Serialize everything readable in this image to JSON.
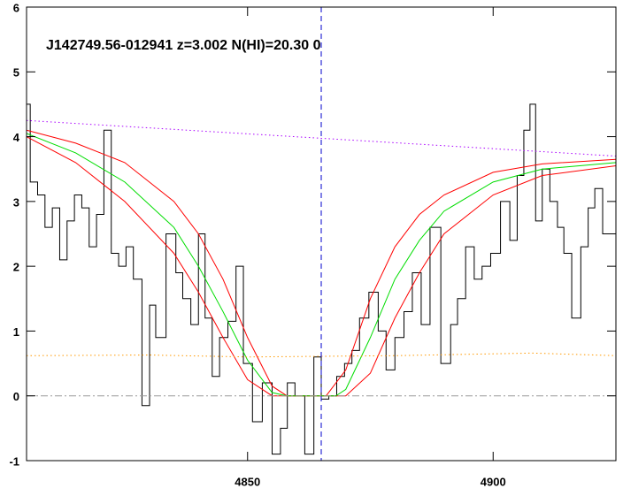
{
  "chart_data": {
    "type": "line",
    "title": "J142749.56-012941 z=3.002 N(HI)=20.30 0",
    "xlim": [
      4805,
      4925
    ],
    "xticks": [
      4850,
      4900
    ],
    "ylim": [
      -1,
      6
    ],
    "yticks": [
      -1,
      0,
      1,
      2,
      3,
      4,
      5,
      6
    ],
    "vline": {
      "x": 4865,
      "color": "#0000cc"
    },
    "series": [
      {
        "color": "#000000",
        "step": true,
        "x": [
          4805,
          4806.5,
          4808,
          4809.5,
          4811,
          4812.5,
          4814,
          4815.5,
          4817,
          4818.5,
          4820,
          4821.5,
          4823,
          4824.5,
          4826,
          4827.5,
          4829.5,
          4830.6,
          4832,
          4834.8,
          4836,
          4837.6,
          4839.3,
          4840.7,
          4842,
          4843.6,
          4845,
          4847,
          4848.3,
          4850,
          4852,
          4854,
          4856,
          4857.4,
          4858.8,
          4860.5,
          4862.8,
          4864.2,
          4865.8,
          4867.3,
          4869,
          4870.5,
          4872,
          4873.6,
          4875.8,
          4877.4,
          4879,
          4881,
          4882.7,
          4884.4,
          4886.3,
          4888,
          4890.7,
          4892,
          4893.5,
          4895.3,
          4897,
          4898.5,
          4900.5,
          4902.5,
          4904.3,
          4905.5,
          4907,
          4908,
          4909.3,
          4910.7,
          4912.4,
          4913.8,
          4915,
          4917,
          4918.7,
          4920,
          4921.4,
          4923.2
        ],
        "values": [
          4.5,
          3.3,
          3.1,
          2.6,
          2.9,
          2.1,
          2.7,
          3.1,
          2.9,
          2.3,
          2.8,
          4.1,
          2.2,
          2.0,
          2.3,
          1.8,
          -0.15,
          1.4,
          0.9,
          2.5,
          1.9,
          1.5,
          1.1,
          2.5,
          1.2,
          0.3,
          0.9,
          1.15,
          2.0,
          0.5,
          -0.4,
          0.2,
          -0.9,
          -0.5,
          0.2,
          0.0,
          -0.9,
          0.6,
          -0.05,
          0.0,
          0.3,
          0.5,
          0.7,
          1.2,
          1.6,
          1.0,
          0.4,
          0.9,
          1.3,
          1.9,
          1.1,
          2.6,
          0.5,
          1.1,
          1.5,
          2.3,
          1.8,
          2.0,
          2.2,
          3.0,
          2.4,
          3.4,
          4.1,
          4.5,
          2.7,
          3.5,
          3.0,
          2.6,
          2.2,
          1.2,
          2.3,
          2.9,
          3.2,
          2.5
        ]
      },
      {
        "color": "#ff0000",
        "x": [
          4805,
          4815,
          4825,
          4835,
          4840,
          4845,
          4850,
          4855,
          4858,
          4866,
          4870,
          4875,
          4880,
          4885,
          4890,
          4900,
          4910,
          4925
        ],
        "values": [
          4.1,
          3.9,
          3.6,
          3.0,
          2.5,
          1.8,
          0.9,
          0.15,
          0,
          0,
          0.4,
          1.5,
          2.3,
          2.8,
          3.1,
          3.45,
          3.58,
          3.65
        ]
      },
      {
        "color": "#ff0000",
        "x": [
          4805,
          4815,
          4825,
          4835,
          4840,
          4845,
          4850,
          4855,
          4870,
          4875,
          4880,
          4885,
          4890,
          4900,
          4910,
          4925
        ],
        "values": [
          4.0,
          3.6,
          3.0,
          2.2,
          1.6,
          0.9,
          0.25,
          0,
          0,
          0.35,
          1.2,
          1.9,
          2.5,
          3.1,
          3.4,
          3.55
        ]
      },
      {
        "color": "#00dd00",
        "x": [
          4805,
          4815,
          4825,
          4835,
          4840,
          4845,
          4850,
          4855,
          4858,
          4868,
          4870,
          4875,
          4880,
          4885,
          4890,
          4900,
          4910,
          4925
        ],
        "values": [
          4.05,
          3.75,
          3.3,
          2.6,
          2.0,
          1.3,
          0.55,
          0.05,
          0,
          0,
          0.1,
          0.9,
          1.8,
          2.4,
          2.85,
          3.3,
          3.5,
          3.6
        ]
      },
      {
        "color": "#aa00ff",
        "dash": "dotted",
        "x": [
          4805,
          4925
        ],
        "values": [
          4.25,
          3.7
        ]
      },
      {
        "color": "#ff9900",
        "dash": "dotted",
        "x": [
          4805,
          4830,
          4850,
          4880,
          4908,
          4925
        ],
        "values": [
          0.62,
          0.63,
          0.6,
          0.62,
          0.66,
          0.62
        ]
      },
      {
        "color": "#999999",
        "dash": "dashdot",
        "x": [
          4805,
          4925
        ],
        "values": [
          0,
          0
        ]
      }
    ]
  }
}
